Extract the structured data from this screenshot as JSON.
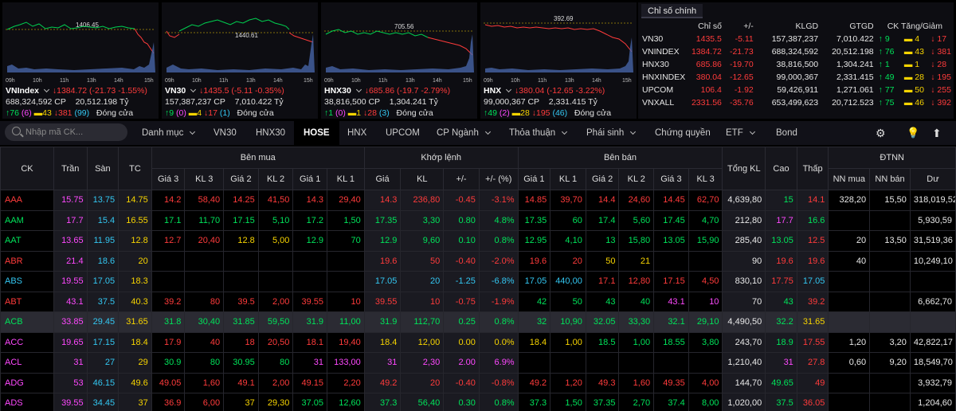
{
  "index_panels": [
    {
      "name": "VNIndex",
      "price_change": "1384.72 (-21.73 -1.55%)",
      "ref_label": "1406.45",
      "volume": "688,324,592 CP",
      "value": "20,512.198 Tỷ",
      "up": "76",
      "ceil": "6",
      "ref": "43",
      "down": "381",
      "floor": "99",
      "status": "Đóng cửa",
      "ticks": [
        "09h",
        "10h",
        "11h",
        "13h",
        "14h",
        "15h"
      ]
    },
    {
      "name": "VN30",
      "price_change": "1435.5 (-5.11 -0.35%)",
      "ref_label": "1440.61",
      "volume": "157,387,237 CP",
      "value": "7,010.422 Tỷ",
      "up": "9",
      "ceil": "0",
      "ref": "4",
      "down": "17",
      "floor": "1",
      "status": "Đóng cửa",
      "ticks": [
        "09h",
        "10h",
        "11h",
        "13h",
        "14h",
        "15h"
      ]
    },
    {
      "name": "HNX30",
      "price_change": "685.86 (-19.7 -2.79%)",
      "ref_label": "705.56",
      "volume": "38,816,500 CP",
      "value": "1,304.241 Tỷ",
      "up": "1",
      "ceil": "0",
      "ref": "1",
      "down": "28",
      "floor": "3",
      "status": "Đóng cửa",
      "ticks": [
        "09h",
        "10h",
        "11h",
        "13h",
        "14h",
        "15h"
      ]
    },
    {
      "name": "HNX",
      "price_change": "380.04 (-12.65 -3.22%)",
      "ref_label": "392.69",
      "volume": "99,000,367 CP",
      "value": "2,331.415 Tỷ",
      "up": "49",
      "ceil": "2",
      "ref": "28",
      "down": "195",
      "floor": "46",
      "status": "Đóng cửa",
      "ticks": [
        "09h",
        "10h",
        "11h",
        "13h",
        "14h",
        "15h"
      ]
    }
  ],
  "summary": {
    "tab": "Chỉ số chính",
    "headers": [
      "Chỉ số",
      "+/-",
      "KLGD",
      "GTGD",
      "CK Tăng/Giảm"
    ],
    "rows": [
      {
        "name": "VN30",
        "price": "1435.5",
        "change": "-5.11",
        "vol": "157,387,237",
        "val": "7,010.422",
        "up": "9",
        "ref": "4",
        "down": "17"
      },
      {
        "name": "VNINDEX",
        "price": "1384.72",
        "change": "-21.73",
        "vol": "688,324,592",
        "val": "20,512.198",
        "up": "76",
        "ref": "43",
        "down": "381"
      },
      {
        "name": "HNX30",
        "price": "685.86",
        "change": "-19.70",
        "vol": "38,816,500",
        "val": "1,304.241",
        "up": "1",
        "ref": "1",
        "down": "28"
      },
      {
        "name": "HNXINDEX",
        "price": "380.04",
        "change": "-12.65",
        "vol": "99,000,367",
        "val": "2,331.415",
        "up": "49",
        "ref": "28",
        "down": "195"
      },
      {
        "name": "UPCOM",
        "price": "106.4",
        "change": "-1.92",
        "vol": "59,426,911",
        "val": "1,271.061",
        "up": "77",
        "ref": "50",
        "down": "255"
      },
      {
        "name": "VNXALL",
        "price": "2331.56",
        "change": "-35.76",
        "vol": "653,499,623",
        "val": "20,712.523",
        "up": "75",
        "ref": "46",
        "down": "392"
      }
    ]
  },
  "nav": {
    "search_placeholder": "Nhập mã CK...",
    "items": [
      "Danh mục",
      "VN30",
      "HNX30",
      "HOSE",
      "HNX",
      "UPCOM",
      "CP Ngành",
      "Thỏa thuận",
      "Phái sinh",
      "Chứng quyền",
      "ETF",
      "Bond"
    ],
    "active": "HOSE"
  },
  "board": {
    "group_headers": {
      "buy": "Bên mua",
      "match": "Khớp lệnh",
      "sell": "Bên bán",
      "foreign": "ĐTNN"
    },
    "col_headers": {
      "ck": "CK",
      "tran": "Trần",
      "san": "Sàn",
      "tc": "TC",
      "b3p": "Giá 3",
      "b3v": "KL 3",
      "b2p": "Giá 2",
      "b2v": "KL 2",
      "b1p": "Giá 1",
      "b1v": "KL 1",
      "mp": "Giá",
      "mv": "KL",
      "mc": "+/-",
      "mpct": "+/- (%)",
      "s1p": "Giá 1",
      "s1v": "KL 1",
      "s2p": "Giá 2",
      "s2v": "KL 2",
      "s3p": "Giá 3",
      "s3v": "KL 3",
      "tkl": "Tổng KL",
      "cao": "Cao",
      "thap": "Thấp",
      "nnm": "NN mua",
      "nnb": "NN bán",
      "du": "Dư"
    },
    "rows": [
      {
        "c": [
          "AAA",
          "15.75",
          "13.75",
          "14.75",
          "14.2",
          "58,40",
          "14.25",
          "41,50",
          "14.3",
          "29,40",
          "14.3",
          "236,80",
          "-0.45",
          "-3.1%",
          "14.85",
          "39,70",
          "14.4",
          "24,60",
          "14.45",
          "62,70",
          "4,639,80",
          "15",
          "14.1",
          "328,20",
          "15,50",
          "318,019,52"
        ],
        "k": [
          "dn",
          "ce",
          "fl",
          "ref",
          "dn",
          "dn",
          "dn",
          "dn",
          "dn",
          "dn",
          "dn",
          "dn",
          "dn",
          "dn",
          "dn",
          "dn",
          "dn",
          "dn",
          "dn",
          "dn",
          "wh",
          "up",
          "dn",
          "wh",
          "wh",
          "wh"
        ]
      },
      {
        "c": [
          "AAM",
          "17.7",
          "15.4",
          "16.55",
          "17.1",
          "11,70",
          "17.15",
          "5,10",
          "17.2",
          "1,50",
          "17.35",
          "3,30",
          "0.80",
          "4.8%",
          "17.35",
          "60",
          "17.4",
          "5,60",
          "17.45",
          "4,70",
          "212,80",
          "17.7",
          "16.6",
          "",
          "",
          "5,930,59"
        ],
        "k": [
          "up",
          "ce",
          "fl",
          "ref",
          "up",
          "up",
          "up",
          "up",
          "up",
          "up",
          "up",
          "up",
          "up",
          "up",
          "up",
          "up",
          "up",
          "up",
          "up",
          "up",
          "wh",
          "ce",
          "up",
          "wh",
          "wh",
          "wh"
        ]
      },
      {
        "c": [
          "AAT",
          "13.65",
          "11.95",
          "12.8",
          "12.7",
          "20,40",
          "12.8",
          "5,00",
          "12.9",
          "70",
          "12.9",
          "9,60",
          "0.10",
          "0.8%",
          "12.95",
          "4,10",
          "13",
          "15,80",
          "13.05",
          "15,90",
          "285,40",
          "13.05",
          "12.5",
          "20",
          "13,50",
          "31,519,36"
        ],
        "k": [
          "up",
          "ce",
          "fl",
          "ref",
          "dn",
          "dn",
          "ref",
          "ref",
          "up",
          "up",
          "up",
          "up",
          "up",
          "up",
          "up",
          "up",
          "up",
          "up",
          "up",
          "up",
          "wh",
          "up",
          "dn",
          "wh",
          "wh",
          "wh"
        ]
      },
      {
        "c": [
          "ABR",
          "21.4",
          "18.6",
          "20",
          "",
          "",
          "",
          "",
          "",
          "",
          "19.6",
          "50",
          "-0.40",
          "-2.0%",
          "19.6",
          "20",
          "50",
          "21",
          "",
          "",
          "90",
          "19.6",
          "19.6",
          "40",
          "",
          "10,249,10"
        ],
        "k": [
          "dn",
          "ce",
          "fl",
          "ref",
          "wh",
          "wh",
          "wh",
          "wh",
          "wh",
          "wh",
          "dn",
          "dn",
          "dn",
          "dn",
          "dn",
          "dn",
          "ref",
          "ref",
          "wh",
          "wh",
          "wh",
          "dn",
          "dn",
          "wh",
          "wh",
          "wh"
        ]
      },
      {
        "c": [
          "ABS",
          "19.55",
          "17.05",
          "18.3",
          "",
          "",
          "",
          "",
          "",
          "",
          "17.05",
          "20",
          "-1.25",
          "-6.8%",
          "17.05",
          "440,00",
          "17.1",
          "12,80",
          "17.15",
          "4,50",
          "830,10",
          "17.75",
          "17.05",
          "",
          "",
          ""
        ],
        "k": [
          "fl",
          "ce",
          "fl",
          "ref",
          "wh",
          "wh",
          "wh",
          "wh",
          "wh",
          "wh",
          "fl",
          "fl",
          "fl",
          "fl",
          "fl",
          "fl",
          "dn",
          "dn",
          "dn",
          "dn",
          "wh",
          "dn",
          "fl",
          "wh",
          "wh",
          "wh"
        ]
      },
      {
        "c": [
          "ABT",
          "43.1",
          "37.5",
          "40.3",
          "39.2",
          "80",
          "39.5",
          "2,00",
          "39.55",
          "10",
          "39.55",
          "10",
          "-0.75",
          "-1.9%",
          "42",
          "50",
          "43",
          "40",
          "43.1",
          "10",
          "70",
          "43",
          "39.2",
          "",
          "",
          "6,662,70"
        ],
        "k": [
          "dn",
          "ce",
          "fl",
          "ref",
          "dn",
          "dn",
          "dn",
          "dn",
          "dn",
          "dn",
          "dn",
          "dn",
          "dn",
          "dn",
          "up",
          "up",
          "up",
          "up",
          "ce",
          "ce",
          "wh",
          "up",
          "dn",
          "wh",
          "wh",
          "wh"
        ]
      },
      {
        "c": [
          "ACB",
          "33.85",
          "29.45",
          "31.65",
          "31.8",
          "30,40",
          "31.85",
          "59,50",
          "31.9",
          "11,00",
          "31.9",
          "112,70",
          "0.25",
          "0.8%",
          "32",
          "10,90",
          "32.05",
          "33,30",
          "32.1",
          "29,10",
          "4,490,50",
          "32.2",
          "31.65",
          "",
          "",
          ""
        ],
        "k": [
          "up",
          "ce",
          "fl",
          "ref",
          "up",
          "up",
          "up",
          "up",
          "up",
          "up",
          "up",
          "up",
          "up",
          "up",
          "up",
          "up",
          "up",
          "up",
          "up",
          "up",
          "wh",
          "up",
          "ref",
          "wh",
          "wh",
          "wh"
        ]
      },
      {
        "c": [
          "ACC",
          "19.65",
          "17.15",
          "18.4",
          "17.9",
          "40",
          "18",
          "20,50",
          "18.1",
          "19,40",
          "18.4",
          "12,00",
          "0.00",
          "0.0%",
          "18.4",
          "1,00",
          "18.5",
          "1,00",
          "18.55",
          "3,80",
          "243,70",
          "18.9",
          "17.55",
          "1,20",
          "3,20",
          "42,822,17"
        ],
        "k": [
          "ce",
          "ce",
          "fl",
          "ref",
          "dn",
          "dn",
          "dn",
          "dn",
          "dn",
          "dn",
          "ref",
          "ref",
          "ref",
          "ref",
          "ref",
          "ref",
          "up",
          "up",
          "up",
          "up",
          "wh",
          "up",
          "dn",
          "wh",
          "wh",
          "wh"
        ]
      },
      {
        "c": [
          "ACL",
          "31",
          "27",
          "29",
          "30.9",
          "80",
          "30.95",
          "80",
          "31",
          "133,00",
          "31",
          "2,30",
          "2.00",
          "6.9%",
          "",
          "",
          "",
          "",
          "",
          "",
          "1,210,40",
          "31",
          "27.8",
          "0,60",
          "9,20",
          "18,549,70"
        ],
        "k": [
          "ce",
          "ce",
          "fl",
          "ref",
          "up",
          "up",
          "up",
          "up",
          "ce",
          "ce",
          "ce",
          "ce",
          "ce",
          "ce",
          "wh",
          "wh",
          "wh",
          "wh",
          "wh",
          "wh",
          "wh",
          "ce",
          "dn",
          "wh",
          "wh",
          "wh"
        ]
      },
      {
        "c": [
          "ADG",
          "53",
          "46.15",
          "49.6",
          "49.05",
          "1,60",
          "49.1",
          "2,00",
          "49.15",
          "2,20",
          "49.2",
          "20",
          "-0.40",
          "-0.8%",
          "49.2",
          "1,20",
          "49.3",
          "1,60",
          "49.35",
          "4,00",
          "144,70",
          "49.65",
          "49",
          "",
          "",
          "3,932,79"
        ],
        "k": [
          "ce",
          "ce",
          "fl",
          "ref",
          "dn",
          "dn",
          "dn",
          "dn",
          "dn",
          "dn",
          "dn",
          "dn",
          "dn",
          "dn",
          "dn",
          "dn",
          "dn",
          "dn",
          "dn",
          "dn",
          "wh",
          "up",
          "dn",
          "wh",
          "wh",
          "wh"
        ]
      },
      {
        "c": [
          "ADS",
          "39.55",
          "34.45",
          "37",
          "36.9",
          "6,00",
          "37",
          "29,30",
          "37.05",
          "12,60",
          "37.3",
          "56,40",
          "0.30",
          "0.8%",
          "37.3",
          "1,50",
          "37.35",
          "2,70",
          "37.4",
          "8,00",
          "1,020,00",
          "37.5",
          "36.05",
          "",
          "",
          "1,204,60"
        ],
        "k": [
          "ce",
          "ce",
          "fl",
          "ref",
          "dn",
          "dn",
          "ref",
          "ref",
          "up",
          "up",
          "up",
          "up",
          "up",
          "up",
          "up",
          "up",
          "up",
          "up",
          "up",
          "up",
          "wh",
          "up",
          "dn",
          "wh",
          "wh",
          "wh"
        ]
      }
    ]
  }
}
